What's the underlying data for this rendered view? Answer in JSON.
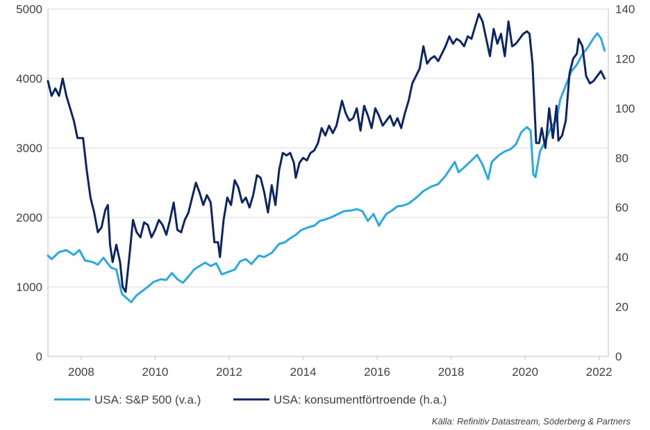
{
  "chart_data": {
    "type": "line",
    "title": "",
    "xlabel": "",
    "ylabel_left": "",
    "ylabel_right": "",
    "x_ticks": [
      "2008",
      "2010",
      "2012",
      "2014",
      "2016",
      "2018",
      "2020",
      "2022"
    ],
    "y_left_ticks": [
      "0",
      "1000",
      "2000",
      "3000",
      "4000",
      "5000"
    ],
    "y_right_ticks": [
      "0",
      "20",
      "40",
      "60",
      "80",
      "100",
      "120",
      "140"
    ],
    "x_range": [
      2007.1,
      2022.25
    ],
    "y_left_range": [
      0,
      5000
    ],
    "y_right_range": [
      0,
      140
    ],
    "grid": "horizontal",
    "legend_position": "bottom",
    "series": [
      {
        "name": "USA: S&P 500 (v.a.)",
        "axis": "left",
        "color": "#2aa8e0",
        "points": [
          [
            2007.1,
            1450
          ],
          [
            2007.2,
            1400
          ],
          [
            2007.4,
            1500
          ],
          [
            2007.6,
            1530
          ],
          [
            2007.8,
            1460
          ],
          [
            2007.95,
            1530
          ],
          [
            2008.1,
            1380
          ],
          [
            2008.3,
            1360
          ],
          [
            2008.45,
            1320
          ],
          [
            2008.6,
            1420
          ],
          [
            2008.8,
            1280
          ],
          [
            2008.95,
            1250
          ],
          [
            2009.1,
            900
          ],
          [
            2009.2,
            850
          ],
          [
            2009.35,
            780
          ],
          [
            2009.5,
            880
          ],
          [
            2009.65,
            940
          ],
          [
            2009.8,
            1000
          ],
          [
            2009.95,
            1070
          ],
          [
            2010.15,
            1110
          ],
          [
            2010.3,
            1100
          ],
          [
            2010.45,
            1200
          ],
          [
            2010.6,
            1110
          ],
          [
            2010.75,
            1060
          ],
          [
            2010.9,
            1150
          ],
          [
            2011.05,
            1250
          ],
          [
            2011.2,
            1300
          ],
          [
            2011.35,
            1350
          ],
          [
            2011.5,
            1300
          ],
          [
            2011.65,
            1340
          ],
          [
            2011.8,
            1180
          ],
          [
            2011.95,
            1210
          ],
          [
            2012.15,
            1250
          ],
          [
            2012.3,
            1370
          ],
          [
            2012.45,
            1400
          ],
          [
            2012.6,
            1330
          ],
          [
            2012.8,
            1450
          ],
          [
            2012.95,
            1430
          ],
          [
            2013.15,
            1490
          ],
          [
            2013.35,
            1620
          ],
          [
            2013.5,
            1640
          ],
          [
            2013.65,
            1700
          ],
          [
            2013.8,
            1750
          ],
          [
            2013.95,
            1820
          ],
          [
            2014.15,
            1860
          ],
          [
            2014.3,
            1880
          ],
          [
            2014.45,
            1950
          ],
          [
            2014.6,
            1970
          ],
          [
            2014.75,
            2000
          ],
          [
            2014.95,
            2050
          ],
          [
            2015.1,
            2090
          ],
          [
            2015.3,
            2100
          ],
          [
            2015.45,
            2120
          ],
          [
            2015.6,
            2090
          ],
          [
            2015.75,
            1950
          ],
          [
            2015.9,
            2050
          ],
          [
            2016.05,
            1880
          ],
          [
            2016.1,
            1930
          ],
          [
            2016.25,
            2050
          ],
          [
            2016.4,
            2100
          ],
          [
            2016.55,
            2160
          ],
          [
            2016.7,
            2170
          ],
          [
            2016.85,
            2200
          ],
          [
            2017.05,
            2280
          ],
          [
            2017.25,
            2380
          ],
          [
            2017.45,
            2440
          ],
          [
            2017.65,
            2480
          ],
          [
            2017.85,
            2600
          ],
          [
            2018.0,
            2720
          ],
          [
            2018.1,
            2800
          ],
          [
            2018.2,
            2650
          ],
          [
            2018.35,
            2720
          ],
          [
            2018.55,
            2820
          ],
          [
            2018.7,
            2900
          ],
          [
            2018.85,
            2760
          ],
          [
            2019.0,
            2550
          ],
          [
            2019.1,
            2800
          ],
          [
            2019.3,
            2900
          ],
          [
            2019.45,
            2950
          ],
          [
            2019.6,
            2980
          ],
          [
            2019.75,
            3050
          ],
          [
            2019.9,
            3230
          ],
          [
            2020.05,
            3300
          ],
          [
            2020.15,
            3250
          ],
          [
            2020.22,
            2620
          ],
          [
            2020.28,
            2580
          ],
          [
            2020.4,
            2950
          ],
          [
            2020.55,
            3100
          ],
          [
            2020.7,
            3300
          ],
          [
            2020.85,
            3400
          ],
          [
            2020.95,
            3700
          ],
          [
            2021.1,
            3900
          ],
          [
            2021.25,
            4100
          ],
          [
            2021.4,
            4200
          ],
          [
            2021.55,
            4350
          ],
          [
            2021.7,
            4450
          ],
          [
            2021.85,
            4580
          ],
          [
            2021.95,
            4650
          ],
          [
            2022.05,
            4580
          ],
          [
            2022.15,
            4400
          ]
        ]
      },
      {
        "name": "USA: konsumentförtroende (h.a.)",
        "axis": "right",
        "color": "#0b2466",
        "points": [
          [
            2007.1,
            111
          ],
          [
            2007.2,
            105
          ],
          [
            2007.3,
            108
          ],
          [
            2007.4,
            105
          ],
          [
            2007.5,
            112
          ],
          [
            2007.6,
            105
          ],
          [
            2007.7,
            100
          ],
          [
            2007.8,
            95
          ],
          [
            2007.9,
            88
          ],
          [
            2008.05,
            88
          ],
          [
            2008.15,
            75
          ],
          [
            2008.25,
            64
          ],
          [
            2008.35,
            58
          ],
          [
            2008.45,
            50
          ],
          [
            2008.55,
            52
          ],
          [
            2008.65,
            59
          ],
          [
            2008.72,
            61
          ],
          [
            2008.78,
            45
          ],
          [
            2008.85,
            38
          ],
          [
            2008.95,
            45
          ],
          [
            2009.05,
            38
          ],
          [
            2009.12,
            28
          ],
          [
            2009.2,
            26
          ],
          [
            2009.3,
            40
          ],
          [
            2009.4,
            55
          ],
          [
            2009.5,
            50
          ],
          [
            2009.6,
            48
          ],
          [
            2009.7,
            54
          ],
          [
            2009.8,
            53
          ],
          [
            2009.9,
            48
          ],
          [
            2010.0,
            51
          ],
          [
            2010.1,
            55
          ],
          [
            2010.2,
            53
          ],
          [
            2010.3,
            49
          ],
          [
            2010.4,
            55
          ],
          [
            2010.5,
            62
          ],
          [
            2010.6,
            51
          ],
          [
            2010.7,
            50
          ],
          [
            2010.8,
            55
          ],
          [
            2010.9,
            58
          ],
          [
            2011.0,
            64
          ],
          [
            2011.1,
            70
          ],
          [
            2011.2,
            66
          ],
          [
            2011.3,
            61
          ],
          [
            2011.4,
            65
          ],
          [
            2011.5,
            62
          ],
          [
            2011.6,
            46
          ],
          [
            2011.7,
            46
          ],
          [
            2011.75,
            40
          ],
          [
            2011.85,
            55
          ],
          [
            2011.95,
            64
          ],
          [
            2012.05,
            61
          ],
          [
            2012.15,
            71
          ],
          [
            2012.25,
            68
          ],
          [
            2012.35,
            62
          ],
          [
            2012.45,
            64
          ],
          [
            2012.55,
            60
          ],
          [
            2012.65,
            65
          ],
          [
            2012.75,
            73
          ],
          [
            2012.85,
            72
          ],
          [
            2012.95,
            66
          ],
          [
            2013.05,
            58
          ],
          [
            2013.15,
            69
          ],
          [
            2013.25,
            61
          ],
          [
            2013.35,
            75
          ],
          [
            2013.45,
            82
          ],
          [
            2013.55,
            81
          ],
          [
            2013.65,
            82
          ],
          [
            2013.75,
            78
          ],
          [
            2013.8,
            72
          ],
          [
            2013.9,
            78
          ],
          [
            2014.0,
            80
          ],
          [
            2014.1,
            79
          ],
          [
            2014.2,
            82
          ],
          [
            2014.3,
            83
          ],
          [
            2014.4,
            86
          ],
          [
            2014.5,
            92
          ],
          [
            2014.6,
            89
          ],
          [
            2014.7,
            93
          ],
          [
            2014.8,
            90
          ],
          [
            2014.9,
            93
          ],
          [
            2015.05,
            103
          ],
          [
            2015.15,
            98
          ],
          [
            2015.25,
            95
          ],
          [
            2015.35,
            96
          ],
          [
            2015.45,
            100
          ],
          [
            2015.55,
            91
          ],
          [
            2015.65,
            101
          ],
          [
            2015.75,
            97
          ],
          [
            2015.85,
            92
          ],
          [
            2015.95,
            100
          ],
          [
            2016.05,
            97
          ],
          [
            2016.15,
            93
          ],
          [
            2016.25,
            95
          ],
          [
            2016.35,
            97
          ],
          [
            2016.45,
            93
          ],
          [
            2016.55,
            96
          ],
          [
            2016.65,
            92
          ],
          [
            2016.75,
            98
          ],
          [
            2016.85,
            103
          ],
          [
            2016.95,
            110
          ],
          [
            2017.05,
            113
          ],
          [
            2017.15,
            116
          ],
          [
            2017.25,
            125
          ],
          [
            2017.35,
            118
          ],
          [
            2017.45,
            120
          ],
          [
            2017.55,
            121
          ],
          [
            2017.65,
            119
          ],
          [
            2017.75,
            122
          ],
          [
            2017.85,
            125
          ],
          [
            2017.95,
            129
          ],
          [
            2018.05,
            126
          ],
          [
            2018.15,
            128
          ],
          [
            2018.25,
            127
          ],
          [
            2018.35,
            125
          ],
          [
            2018.45,
            129
          ],
          [
            2018.55,
            128
          ],
          [
            2018.65,
            133
          ],
          [
            2018.75,
            138
          ],
          [
            2018.85,
            135
          ],
          [
            2018.95,
            128
          ],
          [
            2019.05,
            121
          ],
          [
            2019.15,
            132
          ],
          [
            2019.25,
            126
          ],
          [
            2019.35,
            130
          ],
          [
            2019.45,
            121
          ],
          [
            2019.55,
            135
          ],
          [
            2019.65,
            125
          ],
          [
            2019.75,
            126
          ],
          [
            2019.85,
            128
          ],
          [
            2019.95,
            130
          ],
          [
            2020.05,
            131
          ],
          [
            2020.12,
            130
          ],
          [
            2020.2,
            118
          ],
          [
            2020.3,
            86
          ],
          [
            2020.38,
            86
          ],
          [
            2020.45,
            92
          ],
          [
            2020.55,
            84
          ],
          [
            2020.65,
            100
          ],
          [
            2020.75,
            88
          ],
          [
            2020.85,
            101
          ],
          [
            2020.9,
            87
          ],
          [
            2021.0,
            89
          ],
          [
            2021.1,
            95
          ],
          [
            2021.2,
            114
          ],
          [
            2021.3,
            120
          ],
          [
            2021.4,
            122
          ],
          [
            2021.45,
            128
          ],
          [
            2021.55,
            125
          ],
          [
            2021.65,
            113
          ],
          [
            2021.75,
            110
          ],
          [
            2021.85,
            111
          ],
          [
            2021.95,
            113
          ],
          [
            2022.05,
            115
          ],
          [
            2022.15,
            112
          ]
        ]
      }
    ]
  },
  "source_text": "Källa: Refinitiv Datastream, Söderberg & Partners"
}
